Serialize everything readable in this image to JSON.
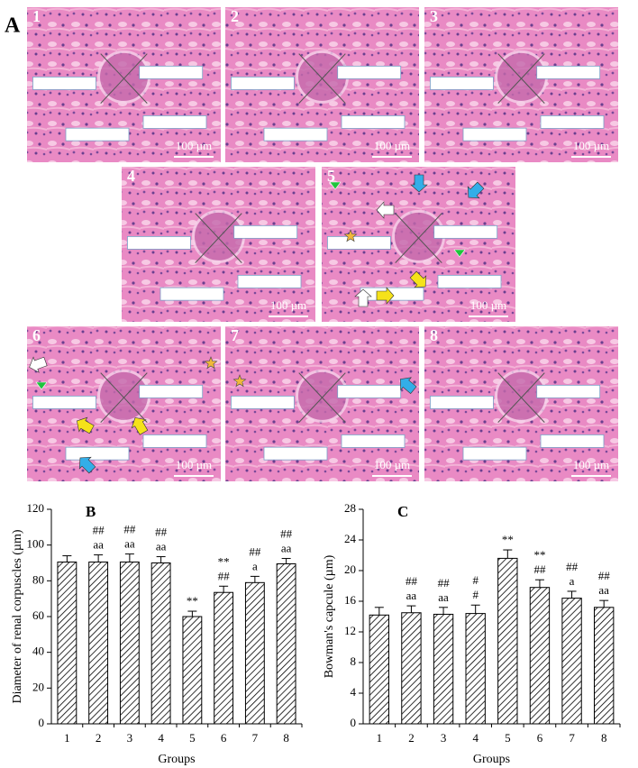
{
  "panel_a": {
    "label": "A",
    "panels": [
      {
        "label": "1",
        "scale_bar": "100 µm"
      },
      {
        "label": "2",
        "scale_bar": "100 µm"
      },
      {
        "label": "3",
        "scale_bar": "100 µm"
      },
      {
        "label": "4",
        "scale_bar": "100 µm"
      },
      {
        "label": "5",
        "scale_bar": "100 µm"
      },
      {
        "label": "6",
        "scale_bar": "100 µm"
      },
      {
        "label": "7",
        "scale_bar": "100 µm"
      },
      {
        "label": "8",
        "scale_bar": "100 µm"
      }
    ]
  },
  "chart_data": [
    {
      "type": "bar",
      "panel_label": "B",
      "ylabel": "Diameter of renal corpuscles (µm)",
      "xlabel": "Groups",
      "categories": [
        "1",
        "2",
        "3",
        "4",
        "5",
        "6",
        "7",
        "8"
      ],
      "values": [
        90.5,
        90.5,
        90.5,
        90,
        60,
        73.5,
        79,
        89.5
      ],
      "errors": [
        3.5,
        4,
        4.5,
        3.5,
        3,
        3.5,
        3.5,
        3
      ],
      "annotations": [
        [],
        [
          "##",
          "aa"
        ],
        [
          "##",
          "aa"
        ],
        [
          "##",
          "aa"
        ],
        [
          "**"
        ],
        [
          "**",
          "##"
        ],
        [
          "##",
          "a"
        ],
        [
          "##",
          "aa"
        ]
      ],
      "ylim": [
        0,
        120
      ],
      "yticks": [
        0,
        20,
        40,
        60,
        80,
        100,
        120
      ],
      "hatch": "diagonal"
    },
    {
      "type": "bar",
      "panel_label": "C",
      "ylabel": "Bowman's capcule (µm)",
      "xlabel": "Groups",
      "categories": [
        "1",
        "2",
        "3",
        "4",
        "5",
        "6",
        "7",
        "8"
      ],
      "values": [
        14.2,
        14.5,
        14.3,
        14.4,
        21.6,
        17.8,
        16.4,
        15.2
      ],
      "errors": [
        1,
        0.9,
        0.9,
        1.1,
        1.1,
        1,
        0.9,
        0.9
      ],
      "annotations": [
        [],
        [
          "##",
          "aa"
        ],
        [
          "##",
          "aa"
        ],
        [
          "#",
          "#"
        ],
        [
          "**"
        ],
        [
          "**",
          "##"
        ],
        [
          "##",
          "a"
        ],
        [
          "##",
          "aa"
        ]
      ],
      "ylim": [
        0,
        28
      ],
      "yticks": [
        0,
        4,
        8,
        12,
        16,
        20,
        24,
        28
      ],
      "hatch": "diagonal"
    }
  ]
}
